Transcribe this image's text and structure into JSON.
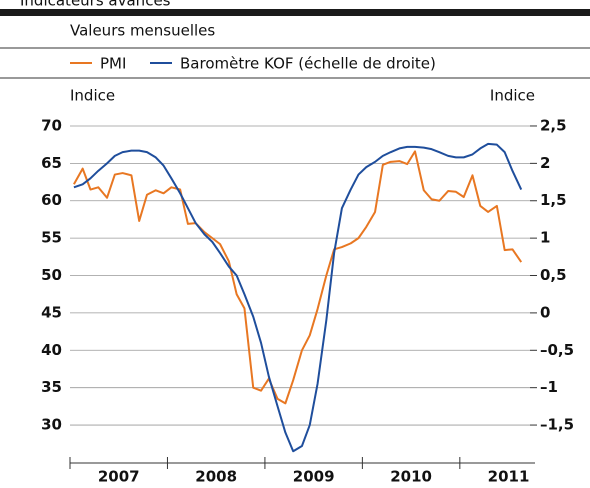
{
  "header": "Indicateurs avancés",
  "chart_data": {
    "type": "line",
    "subtitle": "Valeurs mensuelles",
    "y_label": "Indice",
    "y2_label": "Indice",
    "categories": [
      "2007",
      "2008",
      "2009",
      "2010",
      "2011"
    ],
    "xlim": [
      2007,
      2011.72
    ],
    "xticks": [
      2007,
      2008,
      2009,
      2010,
      2011
    ],
    "ylim": [
      25.5,
      71
    ],
    "yticks": [
      30,
      35,
      40,
      45,
      50,
      55,
      60,
      65,
      70
    ],
    "y2lim": [
      -1.95,
      2.6
    ],
    "y2ticks": [
      {
        "value": -1.5,
        "label": "–1,5"
      },
      {
        "value": -1,
        "label": "–1"
      },
      {
        "value": -0.5,
        "label": "–0,5"
      },
      0,
      {
        "value": 0.5,
        "label": "0,5"
      },
      1,
      {
        "value": 1.5,
        "label": "1,5"
      },
      2,
      {
        "value": 2.5,
        "label": "2,5"
      }
    ],
    "grid": true,
    "x": [
      2007.04,
      2007.13,
      2007.21,
      2007.29,
      2007.38,
      2007.46,
      2007.54,
      2007.63,
      2007.71,
      2007.79,
      2007.88,
      2007.96,
      2008.04,
      2008.13,
      2008.21,
      2008.29,
      2008.38,
      2008.46,
      2008.54,
      2008.63,
      2008.71,
      2008.79,
      2008.88,
      2008.96,
      2009.04,
      2009.13,
      2009.21,
      2009.29,
      2009.38,
      2009.46,
      2009.54,
      2009.63,
      2009.71,
      2009.79,
      2009.88,
      2009.96,
      2010.04,
      2010.13,
      2010.21,
      2010.29,
      2010.38,
      2010.46,
      2010.54,
      2010.63,
      2010.71,
      2010.79,
      2010.88,
      2010.96,
      2011.04,
      2011.13,
      2011.21,
      2011.29,
      2011.38,
      2011.46,
      2011.54,
      2011.63
    ],
    "series": [
      {
        "name": "PMI",
        "color": "#e87722",
        "values": [
          62.2,
          64.3,
          61.5,
          61.8,
          60.4,
          63.5,
          63.7,
          63.4,
          57.3,
          60.8,
          61.4,
          61.0,
          61.8,
          61.5,
          56.9,
          57.0,
          55.8,
          55.0,
          54.2,
          51.9,
          47.5,
          45.6,
          35.0,
          34.6,
          36.2,
          33.5,
          32.9,
          36.0,
          40.0,
          42.0,
          45.5,
          50.0,
          53.5,
          53.8,
          54.3,
          55.0,
          56.5,
          58.5,
          64.8,
          65.2,
          65.3,
          64.9,
          66.6,
          61.4,
          60.2,
          60.0,
          61.3,
          61.2,
          60.5,
          63.4,
          59.3,
          58.5,
          59.3,
          53.4,
          53.5,
          51.8
        ]
      },
      {
        "name": "Baromètre KOF (échelle de droite)",
        "color": "#1f4e9c",
        "axis": "y2",
        "values": [
          1.68,
          1.72,
          1.8,
          1.9,
          2.0,
          2.1,
          2.15,
          2.17,
          2.17,
          2.15,
          2.08,
          1.97,
          1.8,
          1.6,
          1.4,
          1.2,
          1.05,
          0.95,
          0.8,
          0.62,
          0.5,
          0.25,
          -0.05,
          -0.4,
          -0.85,
          -1.25,
          -1.6,
          -1.85,
          -1.78,
          -1.5,
          -0.95,
          -0.1,
          0.8,
          1.4,
          1.65,
          1.85,
          1.95,
          2.02,
          2.1,
          2.15,
          2.2,
          2.22,
          2.22,
          2.21,
          2.19,
          2.15,
          2.1,
          2.08,
          2.08,
          2.12,
          2.2,
          2.26,
          2.25,
          2.15,
          1.9,
          1.65
        ]
      }
    ]
  }
}
